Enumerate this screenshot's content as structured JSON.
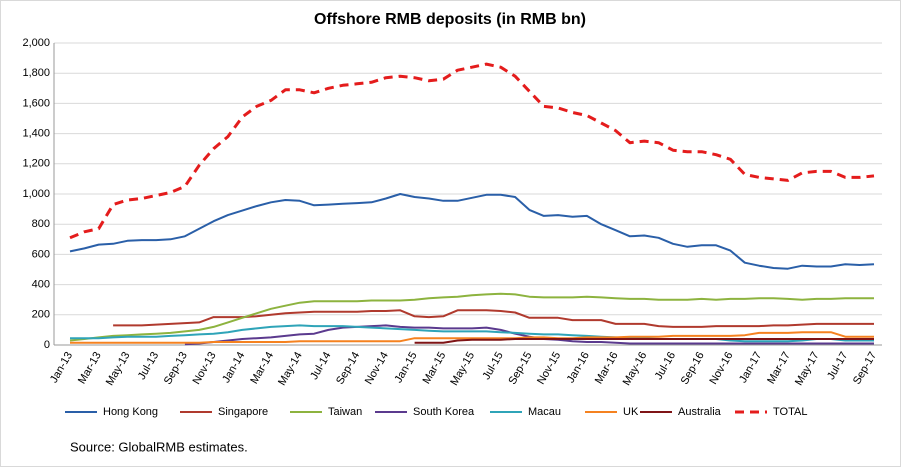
{
  "chart_data": {
    "type": "line",
    "title": "Offshore RMB deposits (in RMB bn)",
    "source": "Source: GlobalRMB estimates.",
    "categories": [
      "Jan-13",
      null,
      "Mar-13",
      null,
      "May-13",
      null,
      "Jul-13",
      null,
      "Sep-13",
      null,
      "Nov-13",
      null,
      "Jan-14",
      null,
      "Mar-14",
      null,
      "May-14",
      null,
      "Jul-14",
      null,
      "Sep-14",
      null,
      "Nov-14",
      null,
      "Jan-15",
      null,
      "Mar-15",
      null,
      "May-15",
      null,
      "Jul-15",
      null,
      "Sep-15",
      null,
      "Nov-15",
      null,
      "Jan-16",
      null,
      "Mar-16",
      null,
      "May-16",
      null,
      "Jul-16",
      null,
      "Sep-16",
      null,
      "Nov-16",
      null,
      "Jan-17",
      null,
      "Mar-17",
      null,
      "May-17",
      null,
      "Jul-17",
      null,
      "Sep-17"
    ],
    "ylim": [
      0,
      2000
    ],
    "yticks": [
      0,
      200,
      400,
      600,
      800,
      {
        "value": 1000,
        "label": "1,000"
      },
      {
        "value": 1200,
        "label": "1,200"
      },
      {
        "value": 1400,
        "label": "1,400"
      },
      {
        "value": 1600,
        "label": "1,600"
      },
      {
        "value": 1800,
        "label": "1,800"
      },
      {
        "value": 2000,
        "label": "2,000"
      }
    ],
    "grid": true,
    "legend": "bottom",
    "series": [
      {
        "name": "Hong Kong",
        "color": "#2a5fa8",
        "dash": false,
        "values": [
          620,
          640,
          665,
          670,
          690,
          695,
          695,
          700,
          720,
          770,
          820,
          860,
          890,
          920,
          945,
          960,
          955,
          925,
          930,
          935,
          940,
          945,
          970,
          1000,
          980,
          970,
          955,
          955,
          975,
          995,
          995,
          980,
          895,
          855,
          860,
          850,
          855,
          800,
          760,
          720,
          725,
          710,
          670,
          650,
          660,
          660,
          625,
          545,
          525,
          510,
          505,
          525,
          520,
          520,
          535,
          530,
          535
        ]
      },
      {
        "name": "Singapore",
        "color": "#b03a2e",
        "dash": false,
        "values": [
          null,
          null,
          null,
          130,
          130,
          130,
          135,
          140,
          145,
          150,
          185,
          185,
          185,
          190,
          200,
          210,
          215,
          220,
          220,
          220,
          220,
          225,
          225,
          230,
          190,
          185,
          190,
          230,
          230,
          230,
          225,
          215,
          180,
          180,
          180,
          165,
          165,
          165,
          140,
          140,
          140,
          125,
          120,
          120,
          120,
          125,
          125,
          125,
          125,
          130,
          130,
          135,
          140,
          140,
          140,
          140,
          140
        ]
      },
      {
        "name": "Taiwan",
        "color": "#8db33f",
        "dash": false,
        "values": [
          30,
          40,
          50,
          60,
          65,
          70,
          75,
          80,
          90,
          100,
          120,
          150,
          180,
          210,
          240,
          260,
          280,
          290,
          290,
          290,
          290,
          295,
          295,
          295,
          300,
          310,
          315,
          320,
          330,
          335,
          340,
          335,
          320,
          315,
          315,
          315,
          320,
          315,
          310,
          305,
          305,
          300,
          300,
          300,
          305,
          300,
          305,
          305,
          310,
          310,
          305,
          300,
          305,
          305,
          310,
          310,
          310
        ]
      },
      {
        "name": "South Korea",
        "color": "#5b3a8e",
        "dash": false,
        "values": [
          null,
          null,
          null,
          null,
          null,
          null,
          null,
          null,
          5,
          10,
          20,
          30,
          40,
          45,
          50,
          60,
          70,
          75,
          100,
          115,
          120,
          125,
          130,
          120,
          115,
          115,
          110,
          110,
          110,
          115,
          100,
          75,
          55,
          40,
          35,
          25,
          20,
          20,
          15,
          10,
          10,
          10,
          10,
          10,
          10,
          10,
          10,
          10,
          10,
          10,
          10,
          10,
          10,
          10,
          10,
          10,
          10
        ]
      },
      {
        "name": "Macau",
        "color": "#2fa4b8",
        "dash": false,
        "values": [
          45,
          45,
          45,
          50,
          55,
          55,
          55,
          60,
          65,
          70,
          75,
          85,
          100,
          110,
          120,
          125,
          130,
          125,
          125,
          125,
          120,
          115,
          110,
          105,
          100,
          95,
          90,
          90,
          90,
          90,
          85,
          80,
          75,
          70,
          70,
          65,
          60,
          55,
          50,
          45,
          45,
          40,
          40,
          40,
          40,
          40,
          30,
          25,
          25,
          25,
          25,
          30,
          40,
          40,
          30,
          30,
          30
        ]
      },
      {
        "name": "UK",
        "color": "#f58220",
        "dash": false,
        "values": [
          15,
          15,
          15,
          15,
          15,
          15,
          15,
          15,
          15,
          15,
          20,
          20,
          20,
          20,
          20,
          20,
          25,
          25,
          25,
          25,
          25,
          25,
          25,
          25,
          45,
          45,
          45,
          45,
          45,
          45,
          45,
          45,
          50,
          50,
          45,
          45,
          50,
          50,
          50,
          55,
          55,
          55,
          60,
          60,
          60,
          60,
          60,
          65,
          80,
          80,
          80,
          85,
          85,
          85,
          55,
          55,
          55
        ]
      },
      {
        "name": "Australia",
        "color": "#7f1416",
        "dash": false,
        "values": [
          null,
          null,
          null,
          null,
          null,
          null,
          null,
          null,
          null,
          null,
          null,
          null,
          null,
          null,
          null,
          null,
          null,
          null,
          null,
          null,
          null,
          null,
          null,
          null,
          15,
          15,
          15,
          30,
          35,
          35,
          35,
          40,
          40,
          40,
          40,
          40,
          40,
          40,
          40,
          40,
          40,
          40,
          40,
          40,
          40,
          40,
          40,
          40,
          40,
          40,
          40,
          40,
          40,
          40,
          40,
          40,
          40
        ]
      },
      {
        "name": "TOTAL",
        "color": "#e41c1c",
        "dash": true,
        "values": [
          710,
          750,
          770,
          930,
          960,
          970,
          990,
          1010,
          1050,
          1190,
          1300,
          1380,
          1510,
          1580,
          1620,
          1690,
          1690,
          1670,
          1700,
          1720,
          1730,
          1740,
          1770,
          1780,
          1770,
          1750,
          1760,
          1820,
          1840,
          1860,
          1840,
          1780,
          1680,
          1580,
          1570,
          1540,
          1520,
          1470,
          1420,
          1340,
          1350,
          1340,
          1290,
          1280,
          1280,
          1260,
          1230,
          1130,
          1110,
          1100,
          1090,
          1140,
          1150,
          1150,
          1110,
          1110,
          1120
        ]
      }
    ]
  }
}
